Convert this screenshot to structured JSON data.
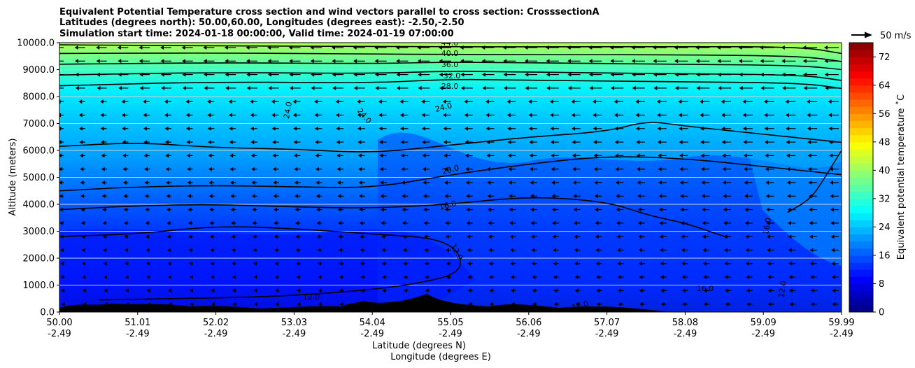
{
  "chart_data": {
    "type": "heatmap",
    "title_lines": [
      "Equivalent Potential Temperature cross section and wind vectors parallel to cross section: CrosssectionA",
      "Latitudes (degrees north): 50.00,60.00, Longitudes (degrees east): -2.50,-2.50",
      "Simulation start time: 2024-01-18 00:00:00, Valid time: 2024-01-19 07:00:00"
    ],
    "ylabel": "Altitude (meters)",
    "xlabel_lines": [
      "Latitude (degrees N)",
      "Longitude (degrees E)"
    ],
    "ylim": [
      0,
      10000
    ],
    "y_ticks": [
      "0.0",
      "1000.0",
      "2000.0",
      "3000.0",
      "4000.0",
      "5000.0",
      "6000.0",
      "7000.0",
      "8000.0",
      "9000.0",
      "10000.0"
    ],
    "x_ticks": [
      {
        "lat": "50.00",
        "lon": "-2.49"
      },
      {
        "lat": "51.01",
        "lon": "-2.49"
      },
      {
        "lat": "52.02",
        "lon": "-2.49"
      },
      {
        "lat": "53.03",
        "lon": "-2.49"
      },
      {
        "lat": "54.04",
        "lon": "-2.49"
      },
      {
        "lat": "55.05",
        "lon": "-2.49"
      },
      {
        "lat": "56.06",
        "lon": "-2.49"
      },
      {
        "lat": "57.07",
        "lon": "-2.49"
      },
      {
        "lat": "58.08",
        "lon": "-2.49"
      },
      {
        "lat": "59.09",
        "lon": "-2.49"
      },
      {
        "lat": "59.99",
        "lon": "-2.49"
      }
    ],
    "xlim": [
      50.0,
      59.99
    ],
    "grid": "horizontal",
    "colorbar": {
      "label": "Equivalent potential temperature ˚C",
      "min": 0,
      "max": 76,
      "ticks": [
        0,
        8,
        16,
        24,
        32,
        40,
        48,
        56,
        64,
        72
      ],
      "colormap": "jet"
    },
    "wind_key": {
      "label": "50 m/s"
    },
    "contour_labels": [
      "44.0",
      "40.0",
      "36.0",
      "32.0",
      "28.0",
      "24.0",
      "24.0",
      "24.0",
      "20.0",
      "16.0",
      "16.0",
      "12.0",
      "12.0",
      "12.0",
      "12.0",
      "16.0"
    ],
    "contours": [
      {
        "level": 44,
        "points": [
          [
            50,
            9920
          ],
          [
            52,
            9880
          ],
          [
            54,
            9860
          ],
          [
            55,
            9850
          ],
          [
            56,
            9840
          ],
          [
            58,
            9860
          ],
          [
            59.5,
            9840
          ],
          [
            59.99,
            9600
          ]
        ]
      },
      {
        "level": 40,
        "points": [
          [
            50,
            9600
          ],
          [
            52,
            9620
          ],
          [
            54,
            9580
          ],
          [
            55,
            9560
          ],
          [
            56,
            9560
          ],
          [
            58,
            9550
          ],
          [
            59.5,
            9500
          ],
          [
            59.99,
            9300
          ]
        ]
      },
      {
        "level": 36,
        "points": [
          [
            50,
            9200
          ],
          [
            52,
            9260
          ],
          [
            54,
            9220
          ],
          [
            55,
            9280
          ],
          [
            56,
            9250
          ],
          [
            58,
            9200
          ],
          [
            59.5,
            9150
          ],
          [
            59.99,
            9000
          ]
        ]
      },
      {
        "level": 32,
        "points": [
          [
            50,
            8800
          ],
          [
            52,
            8900
          ],
          [
            54,
            8850
          ],
          [
            55,
            8950
          ],
          [
            56,
            8900
          ],
          [
            58,
            8850
          ],
          [
            59.5,
            8800
          ],
          [
            59.99,
            8600
          ]
        ]
      },
      {
        "level": 28,
        "points": [
          [
            50,
            8400
          ],
          [
            52,
            8550
          ],
          [
            54,
            8500
          ],
          [
            55,
            8650
          ],
          [
            56,
            8600
          ],
          [
            58,
            8550
          ],
          [
            59.5,
            8500
          ],
          [
            59.99,
            8300
          ]
        ]
      },
      {
        "level": 24,
        "points": [
          [
            50,
            6150
          ],
          [
            51,
            6300
          ],
          [
            52,
            6100
          ],
          [
            53,
            6050
          ],
          [
            54,
            5900
          ],
          [
            55,
            6200
          ],
          [
            56,
            6500
          ],
          [
            57,
            6700
          ],
          [
            57.5,
            7100
          ],
          [
            58,
            6900
          ],
          [
            59,
            6600
          ],
          [
            59.99,
            6300
          ]
        ]
      },
      {
        "level": 20,
        "points": [
          [
            50,
            4500
          ],
          [
            51,
            4650
          ],
          [
            52,
            4700
          ],
          [
            53,
            4650
          ],
          [
            54,
            4600
          ],
          [
            55,
            5100
          ],
          [
            56,
            5500
          ],
          [
            57,
            5800
          ],
          [
            58,
            5700
          ],
          [
            59,
            5400
          ],
          [
            59.99,
            5100
          ]
        ]
      },
      {
        "level": 16,
        "points": [
          [
            50,
            3800
          ],
          [
            51,
            3950
          ],
          [
            52,
            4000
          ],
          [
            53,
            3900
          ],
          [
            54,
            3850
          ],
          [
            55,
            4000
          ],
          [
            56,
            4300
          ],
          [
            57,
            4100
          ],
          [
            57.5,
            3600
          ],
          [
            58,
            3300
          ],
          [
            58.5,
            2800
          ]
        ]
      },
      {
        "level": 12,
        "points": [
          [
            50,
            2800
          ],
          [
            51,
            2900
          ],
          [
            52,
            3200
          ],
          [
            53,
            3100
          ],
          [
            54,
            2900
          ],
          [
            55,
            2700
          ],
          [
            55.2,
            1500
          ],
          [
            54.5,
            1000
          ],
          [
            53.5,
            700
          ],
          [
            52.5,
            550
          ],
          [
            51.5,
            500
          ],
          [
            50.5,
            450
          ]
        ]
      },
      {
        "level": 16,
        "points": [
          [
            59.3,
            3700
          ],
          [
            59.6,
            4200
          ],
          [
            59.8,
            5100
          ],
          [
            59.99,
            6000
          ]
        ]
      }
    ]
  }
}
